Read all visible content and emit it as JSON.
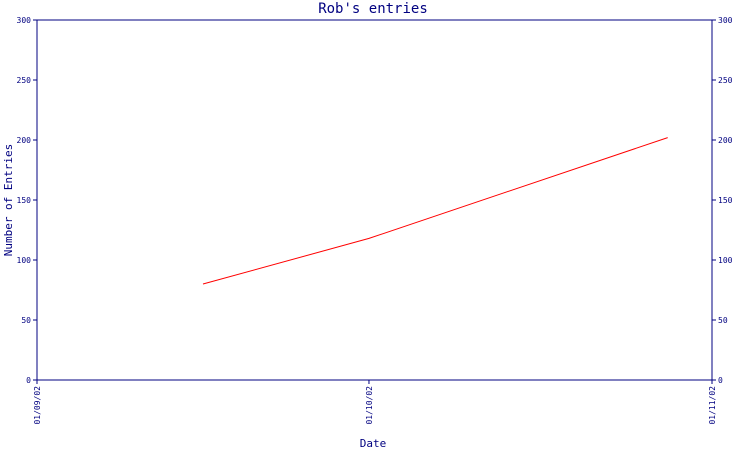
{
  "chart_data": {
    "type": "line",
    "title": "Rob's entries",
    "xlabel": "Date",
    "ylabel": "Number of Entries",
    "x_tick_labels": [
      "01/09/02",
      "01/10/02",
      "01/11/02"
    ],
    "xlim": [
      "01/09/02",
      "01/11/02"
    ],
    "ylim": [
      0,
      300
    ],
    "y_ticks": [
      0,
      50,
      100,
      150,
      200,
      250,
      300
    ],
    "grid": false,
    "legend": "none",
    "series": [
      {
        "x": [
          "01/09/02 + 15 days",
          "01/10/02",
          "01/11/02 - 4 days"
        ],
        "x_values": [
          "2002-09-16",
          "2002-10-01",
          "2002-10-28"
        ],
        "values": [
          80,
          118,
          202
        ],
        "color": "#ff0000"
      }
    ],
    "frame_color": "#000080"
  }
}
